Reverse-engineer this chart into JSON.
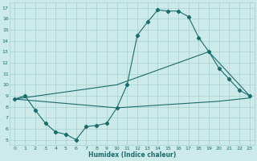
{
  "xlabel": "Humidex (Indice chaleur)",
  "xlim": [
    -0.5,
    23.5
  ],
  "ylim": [
    4.5,
    17.5
  ],
  "xticks": [
    0,
    1,
    2,
    3,
    4,
    5,
    6,
    7,
    8,
    9,
    10,
    11,
    12,
    13,
    14,
    15,
    16,
    17,
    18,
    19,
    20,
    21,
    22,
    23
  ],
  "yticks": [
    5,
    6,
    7,
    8,
    9,
    10,
    11,
    12,
    13,
    14,
    15,
    16,
    17
  ],
  "background_color": "#cceaea",
  "grid_color": "#a8d0d0",
  "line_color": "#1a6b6b",
  "series_main": {
    "x": [
      0,
      1,
      2,
      3,
      4,
      5,
      6,
      7,
      8,
      9,
      10,
      11,
      12,
      13,
      14,
      15,
      16,
      17,
      18,
      19,
      20,
      21,
      22,
      23
    ],
    "y": [
      8.7,
      9.0,
      7.7,
      6.5,
      5.7,
      5.5,
      5.0,
      6.2,
      6.3,
      6.5,
      7.9,
      10.0,
      14.5,
      15.7,
      16.8,
      16.7,
      16.7,
      16.2,
      14.3,
      13.0,
      11.5,
      10.5,
      9.5,
      9.0
    ]
  },
  "series_line1": {
    "x": [
      0,
      10,
      19,
      23
    ],
    "y": [
      8.7,
      10.0,
      13.0,
      9.0
    ]
  },
  "series_line2": {
    "x": [
      0,
      10,
      20,
      23
    ],
    "y": [
      8.7,
      7.9,
      8.5,
      8.8
    ]
  }
}
